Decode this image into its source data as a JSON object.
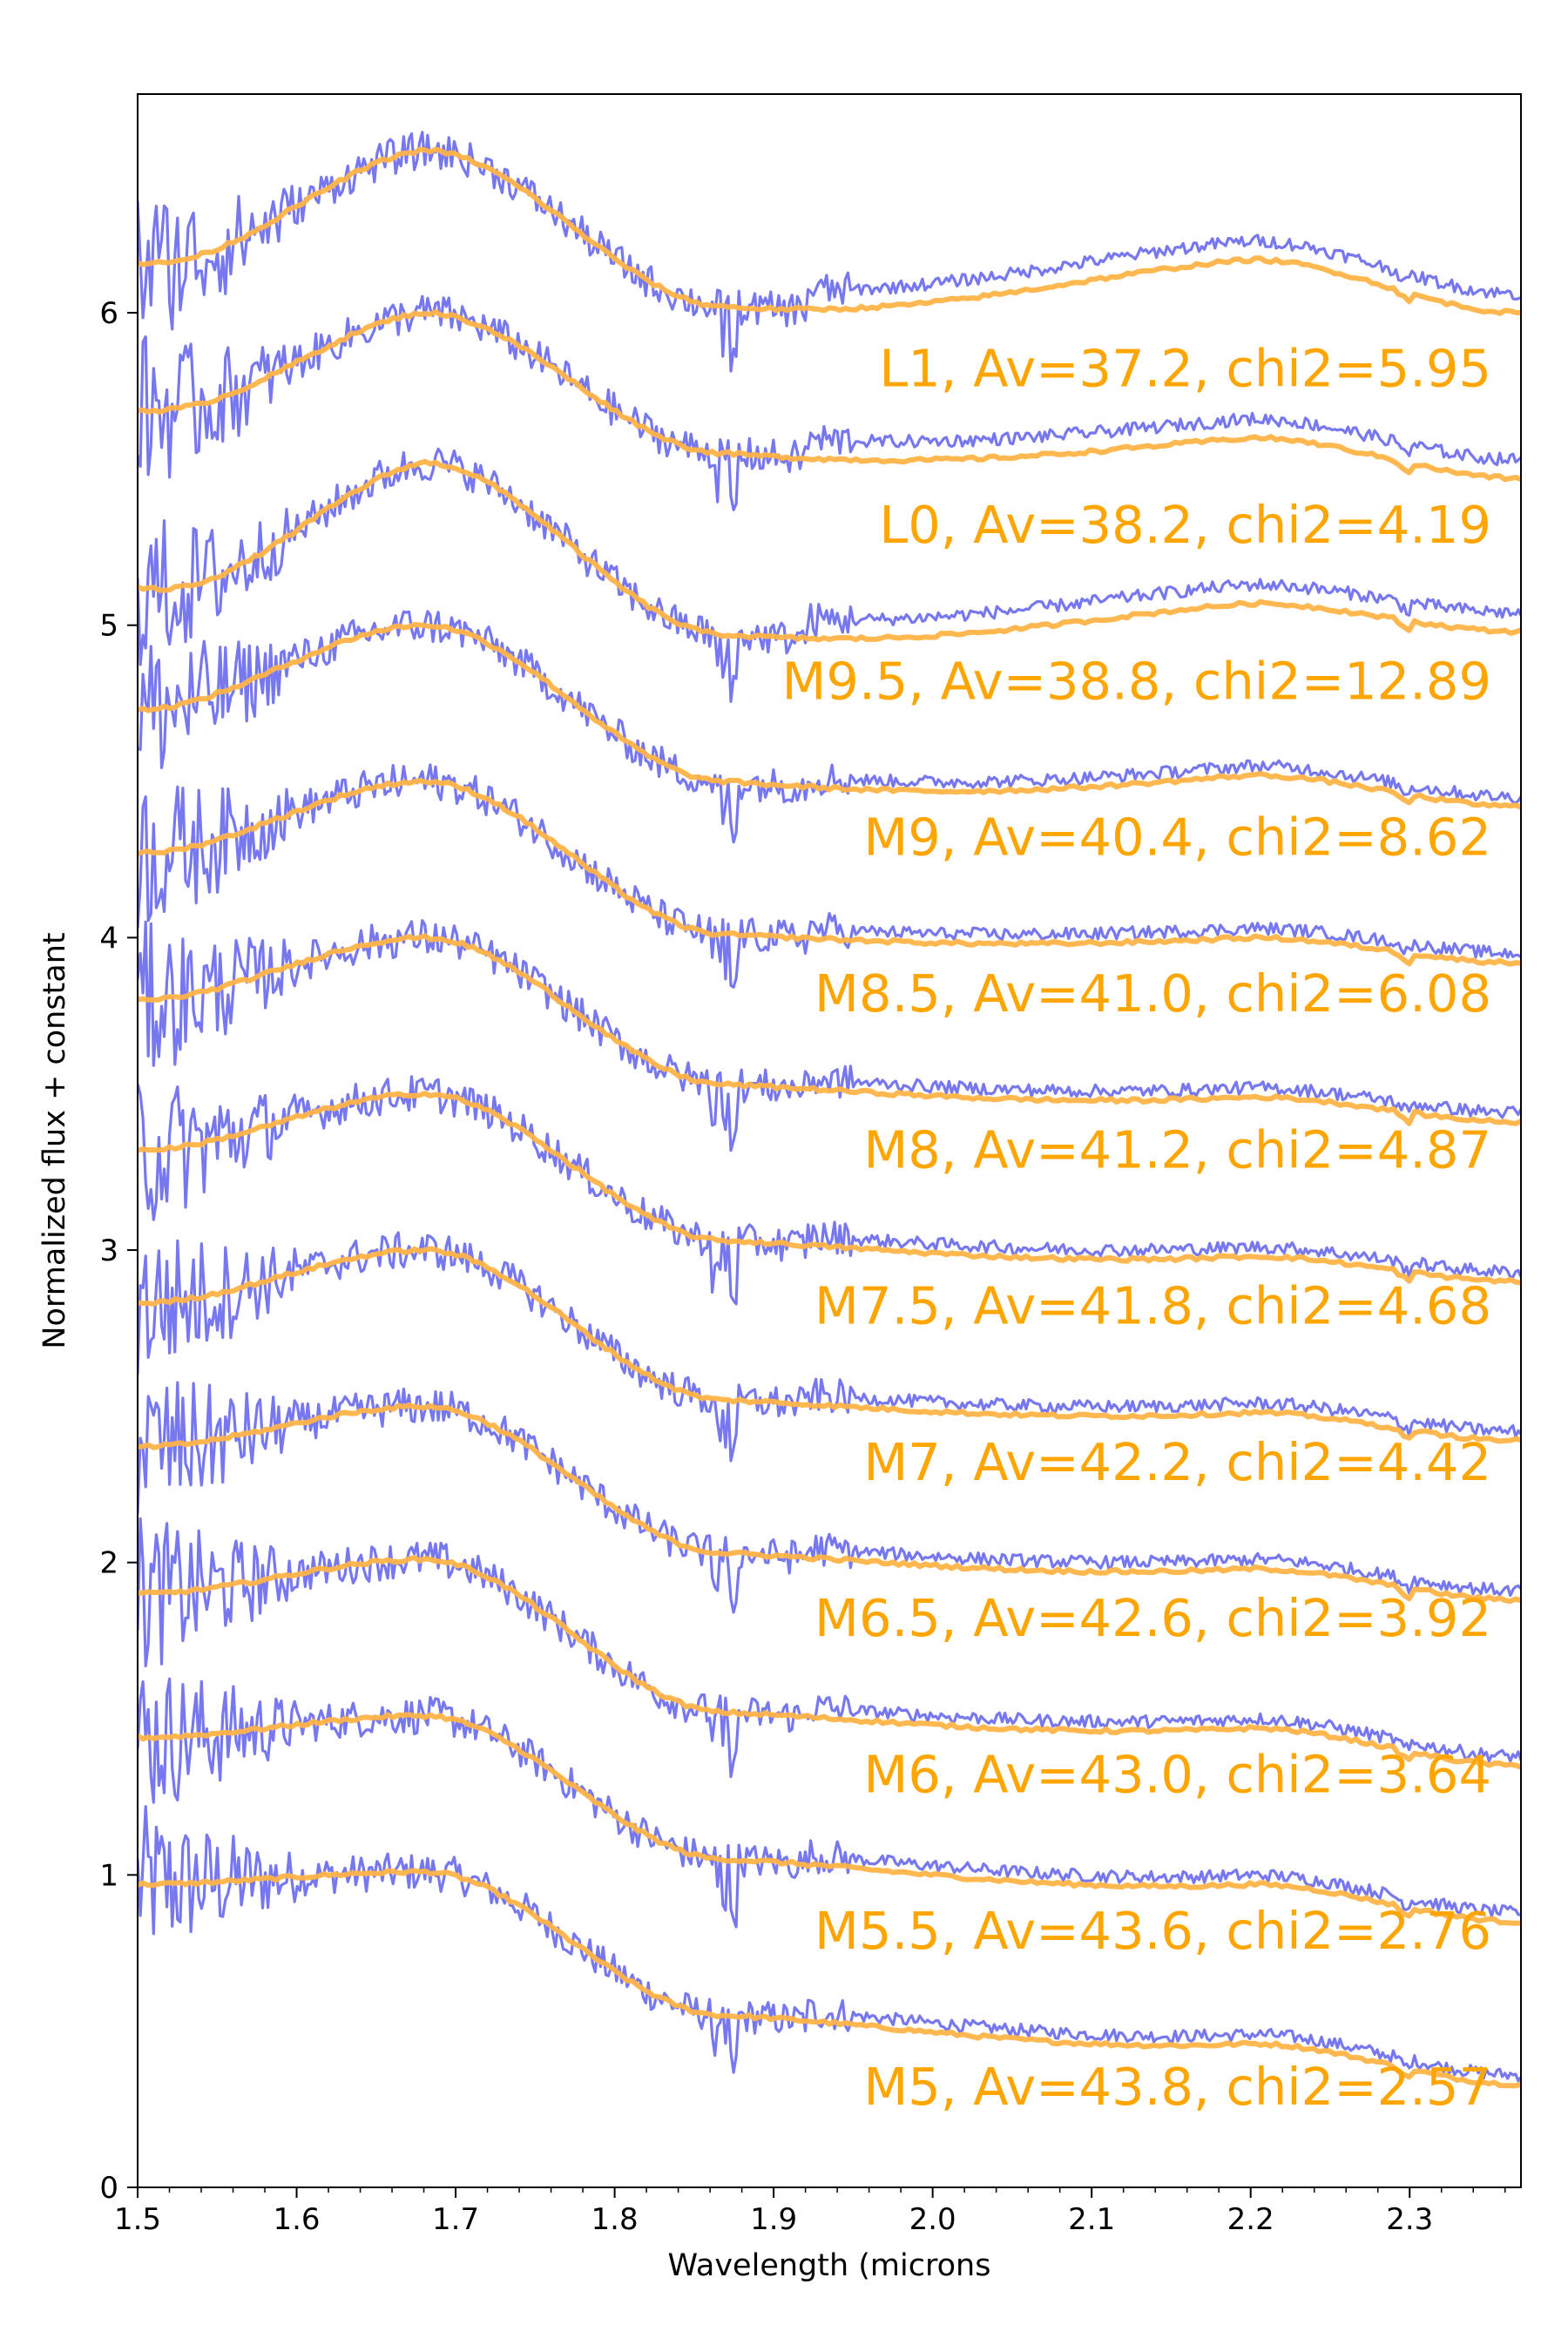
{
  "chart_data": {
    "type": "line",
    "title": "",
    "xlabel": "Wavelength (microns",
    "ylabel": "Normalized flux + constant",
    "xlim": [
      1.5,
      2.37
    ],
    "ylim": [
      0,
      6.7
    ],
    "xticks": [
      "1.5",
      "1.6",
      "1.7",
      "1.8",
      "1.9",
      "2.0",
      "2.1",
      "2.2",
      "2.3"
    ],
    "yticks": [
      "0",
      "1",
      "2",
      "3",
      "4",
      "5",
      "6"
    ],
    "grid": false,
    "colors": {
      "observed": "#7070ee",
      "model": "#ffb347",
      "annotation": "#ffa500"
    },
    "series": [
      {
        "name": "M5",
        "annotation": "M5, Av=43.8, chi2=2.57",
        "offset": 0.0,
        "start": 0.97,
        "peak": 1.01,
        "dip": 0.55,
        "mid": 0.46,
        "end": 0.33,
        "left_dev": 0.0
      },
      {
        "name": "M5.5",
        "annotation": "M5.5, Av=43.6, chi2=2.76",
        "offset": 0.5,
        "start": 1.44,
        "peak": 1.51,
        "dip": 1.05,
        "mid": 0.97,
        "end": 0.85,
        "left_dev": 0.0
      },
      {
        "name": "M6",
        "annotation": "M6, Av=43.0, chi2=3.64",
        "offset": 1.0,
        "start": 1.9,
        "peak": 2.01,
        "dip": 1.52,
        "mid": 1.47,
        "end": 1.35,
        "left_dev": 0.0
      },
      {
        "name": "M6.5",
        "annotation": "M6.5, Av=42.6, chi2=3.92",
        "offset": 1.5,
        "start": 2.37,
        "peak": 2.5,
        "dip": 2.03,
        "mid": 1.98,
        "end": 1.88,
        "left_dev": 0.0
      },
      {
        "name": "M7",
        "annotation": "M7, Av=42.2, chi2=4.42",
        "offset": 2.0,
        "start": 2.83,
        "peak": 3.0,
        "dip": 2.52,
        "mid": 2.48,
        "end": 2.39,
        "left_dev": 0.0
      },
      {
        "name": "M7.5",
        "annotation": "M7.5, Av=41.8, chi2=4.68",
        "offset": 2.5,
        "start": 3.32,
        "peak": 3.5,
        "dip": 3.03,
        "mid": 2.98,
        "end": 2.9,
        "left_dev": 0.0
      },
      {
        "name": "M8",
        "annotation": "M8, Av=41.2, chi2=4.87",
        "offset": 3.0,
        "start": 3.8,
        "peak": 4.0,
        "dip": 3.53,
        "mid": 3.49,
        "end": 3.41,
        "left_dev": 0.0
      },
      {
        "name": "M8.5",
        "annotation": "M8.5, Av=41.0, chi2=6.08",
        "offset": 3.5,
        "start": 4.27,
        "peak": 4.5,
        "dip": 4.01,
        "mid": 4.0,
        "end": 3.92,
        "left_dev": 0.0
      },
      {
        "name": "M9",
        "annotation": "M9, Av=40.4, chi2=8.62",
        "offset": 4.0,
        "start": 4.73,
        "peak": 5.0,
        "dip": 4.5,
        "mid": 4.52,
        "end": 4.42,
        "left_dev": 0.0
      },
      {
        "name": "M9.5",
        "annotation": "M9.5, Av=38.8, chi2=12.89",
        "offset": 4.5,
        "start": 5.12,
        "peak": 5.52,
        "dip": 4.97,
        "mid": 5.07,
        "end": 4.98,
        "left_dev": -0.05
      },
      {
        "name": "L0",
        "annotation": "L0, Av=38.2, chi2=4.19",
        "offset": 5.0,
        "start": 5.69,
        "peak": 6.0,
        "dip": 5.55,
        "mid": 5.6,
        "end": 5.47,
        "left_dev": -0.03
      },
      {
        "name": "L1",
        "annotation": "L1, Av=37.2, chi2=5.95",
        "offset": 5.5,
        "start": 6.16,
        "peak": 6.52,
        "dip": 6.02,
        "mid": 6.17,
        "end": 6.0,
        "left_dev": -0.03
      }
    ]
  }
}
